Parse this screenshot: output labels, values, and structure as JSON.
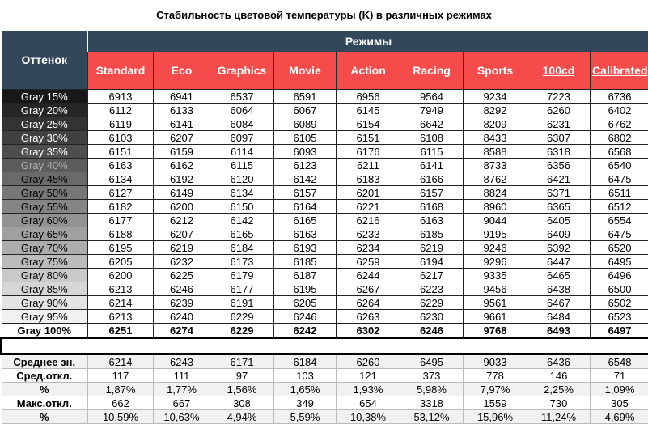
{
  "title": "Стабильность цветовой температуры (K) в различных режимах",
  "header": {
    "row_label": "Оттенок",
    "group_label": "Режимы",
    "modes": [
      "Standard",
      "Eco",
      "Graphics",
      "Movie",
      "Action",
      "Racing",
      "Sports",
      "100cd",
      "Calibrated"
    ],
    "underlined_modes": [
      "100cd",
      "Calibrated"
    ]
  },
  "colors": {
    "navy": "#33475b",
    "red": "#f64b4b"
  },
  "rows": [
    {
      "label": "Gray 15%",
      "values": [
        6913,
        6941,
        6537,
        6591,
        6956,
        9564,
        9234,
        7223,
        6736
      ]
    },
    {
      "label": "Gray 20%",
      "values": [
        6112,
        6133,
        6064,
        6067,
        6145,
        7949,
        8292,
        6260,
        6402
      ]
    },
    {
      "label": "Gray 25%",
      "values": [
        6119,
        6141,
        6084,
        6089,
        6154,
        6642,
        8209,
        6231,
        6762
      ]
    },
    {
      "label": "Gray 30%",
      "values": [
        6103,
        6207,
        6097,
        6105,
        6151,
        6108,
        8433,
        6307,
        6802
      ]
    },
    {
      "label": "Gray 35%",
      "values": [
        6151,
        6159,
        6114,
        6093,
        6176,
        6115,
        8588,
        6318,
        6568
      ]
    },
    {
      "label": "Gray 40%",
      "values": [
        6163,
        6162,
        6115,
        6123,
        6211,
        6141,
        8733,
        6356,
        6540
      ]
    },
    {
      "label": "Gray 45%",
      "values": [
        6134,
        6192,
        6120,
        6142,
        6183,
        6166,
        8762,
        6421,
        6475
      ]
    },
    {
      "label": "Gray 50%",
      "values": [
        6127,
        6149,
        6134,
        6157,
        6201,
        6157,
        8824,
        6371,
        6511
      ]
    },
    {
      "label": "Gray 55%",
      "values": [
        6182,
        6200,
        6150,
        6164,
        6221,
        6168,
        8960,
        6365,
        6512
      ]
    },
    {
      "label": "Gray 60%",
      "values": [
        6177,
        6212,
        6142,
        6165,
        6216,
        6163,
        9044,
        6405,
        6554
      ]
    },
    {
      "label": "Gray 65%",
      "values": [
        6188,
        6207,
        6165,
        6163,
        6233,
        6185,
        9195,
        6409,
        6475
      ]
    },
    {
      "label": "Gray 70%",
      "values": [
        6195,
        6219,
        6184,
        6193,
        6234,
        6219,
        9246,
        6392,
        6520
      ]
    },
    {
      "label": "Gray 75%",
      "values": [
        6205,
        6232,
        6173,
        6185,
        6259,
        6194,
        9296,
        6447,
        6495
      ]
    },
    {
      "label": "Gray 80%",
      "values": [
        6200,
        6225,
        6179,
        6187,
        6244,
        6217,
        9335,
        6465,
        6496
      ]
    },
    {
      "label": "Gray 85%",
      "values": [
        6213,
        6246,
        6177,
        6195,
        6267,
        6223,
        9456,
        6438,
        6500
      ]
    },
    {
      "label": "Gray 90%",
      "values": [
        6214,
        6239,
        6191,
        6205,
        6264,
        6229,
        9561,
        6467,
        6502
      ]
    },
    {
      "label": "Gray 95%",
      "values": [
        6213,
        6240,
        6229,
        6246,
        6263,
        6230,
        9661,
        6484,
        6523
      ]
    },
    {
      "label": "Gray 100%",
      "values": [
        6251,
        6274,
        6229,
        6242,
        6302,
        6246,
        9768,
        6493,
        6497
      ]
    }
  ],
  "stats": [
    {
      "label": "Среднее зн.",
      "values": [
        "6214",
        "6243",
        "6171",
        "6184",
        "6260",
        "6495",
        "9033",
        "6436",
        "6548"
      ]
    },
    {
      "label": "Сред.откл.",
      "values": [
        "117",
        "111",
        "97",
        "103",
        "121",
        "373",
        "778",
        "146",
        "71"
      ]
    },
    {
      "label": "%",
      "values": [
        "1,87%",
        "1,77%",
        "1,56%",
        "1,65%",
        "1,93%",
        "5,98%",
        "7,97%",
        "2,25%",
        "1,09%"
      ]
    },
    {
      "label": "Макс.откл.",
      "values": [
        "662",
        "667",
        "308",
        "349",
        "654",
        "3318",
        "1559",
        "730",
        "305"
      ]
    },
    {
      "label": "%",
      "values": [
        "10,59%",
        "10,63%",
        "4,94%",
        "5,59%",
        "10,38%",
        "53,12%",
        "15,96%",
        "11,24%",
        "4,69%"
      ]
    }
  ]
}
